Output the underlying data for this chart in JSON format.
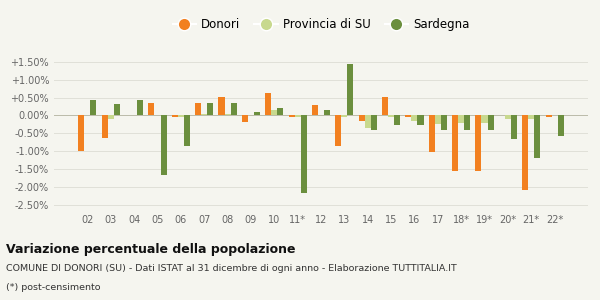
{
  "years": [
    "02",
    "03",
    "04",
    "05",
    "06",
    "07",
    "08",
    "09",
    "10",
    "11*",
    "12",
    "13",
    "14",
    "15",
    "16",
    "17",
    "18*",
    "19*",
    "20*",
    "21*",
    "22*"
  ],
  "donori": [
    -1.0,
    -0.62,
    0.0,
    0.35,
    -0.05,
    0.35,
    0.52,
    -0.18,
    0.62,
    -0.05,
    0.3,
    -0.85,
    -0.15,
    0.52,
    -0.05,
    -1.02,
    -1.55,
    -1.55,
    0.0,
    -2.1,
    -0.05
  ],
  "provincia_su": [
    0.0,
    -0.1,
    0.0,
    0.0,
    -0.05,
    0.05,
    0.05,
    0.0,
    0.15,
    -0.05,
    0.0,
    -0.05,
    -0.35,
    -0.05,
    -0.15,
    -0.25,
    -0.2,
    -0.2,
    -0.1,
    -0.1,
    0.0
  ],
  "sardegna": [
    0.42,
    0.32,
    0.43,
    -1.68,
    -0.85,
    0.35,
    0.35,
    0.1,
    0.2,
    -2.18,
    0.15,
    1.45,
    -0.4,
    -0.28,
    -0.28,
    -0.42,
    -0.42,
    -0.42,
    -0.65,
    -1.18,
    -0.58
  ],
  "color_donori": "#f28020",
  "color_provincia": "#c8d98e",
  "color_sardegna": "#6b8f3e",
  "title": "Variazione percentuale della popolazione",
  "subtitle": "COMUNE DI DONORI (SU) - Dati ISTAT al 31 dicembre di ogni anno - Elaborazione TUTTITALIA.IT",
  "footnote": "(*) post-censimento",
  "ylim": [
    -2.65,
    1.72
  ],
  "yticks": [
    -2.5,
    -2.0,
    -1.5,
    -1.0,
    -0.5,
    0.0,
    0.5,
    1.0,
    1.5
  ],
  "bg_color": "#f5f5ef",
  "grid_color": "#e0e0d8"
}
